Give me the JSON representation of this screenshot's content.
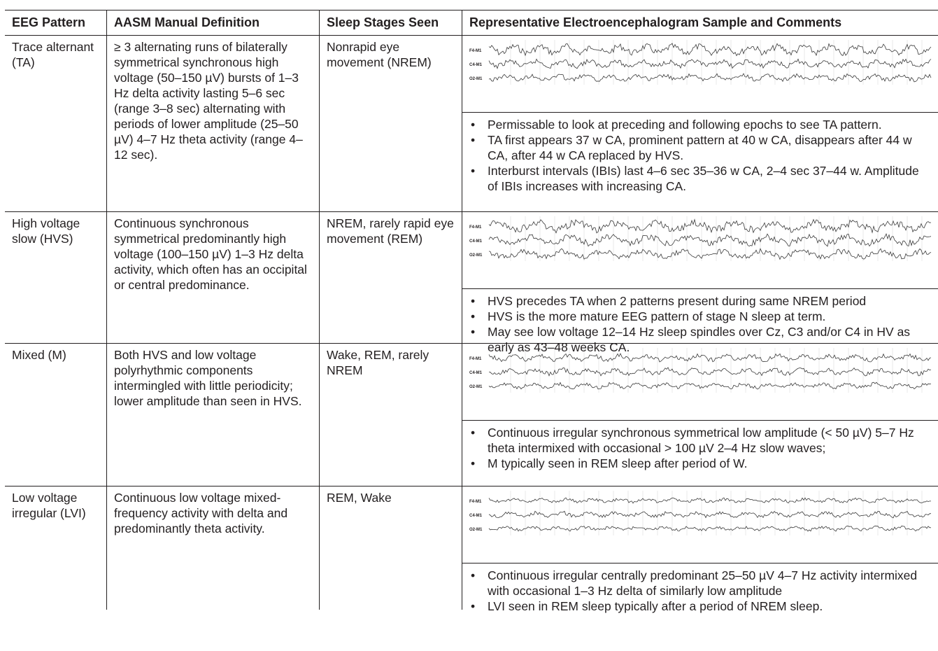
{
  "headers": {
    "pattern": "EEG Pattern",
    "definition": "AASM Manual Definition",
    "stages": "Sleep Stages Seen",
    "sample": "Representative Electroencephalogram Sample and Comments"
  },
  "channel_labels": [
    "F4-M1",
    "C4-M1",
    "O2-M1"
  ],
  "rows": [
    {
      "pattern": "Trace alternant (TA)",
      "definition": "≥ 3 alternating runs of bilaterally symmetrical synchronous high voltage (50–150 µV) bursts of 1–3 Hz delta activity lasting 5–6 sec (range 3–8 sec) alternating with periods of lower amplitude (25–50 µV) 4–7 Hz theta activity (range 4–12 sec).",
      "stages": "Nonrapid eye movement (NREM)",
      "comments": [
        "Permissable to look at preceding and following epochs to see TA pattern.",
        "TA first appears 37 w CA, prominent pattern at 40 w CA, disappears after 44 w CA, after 44 w CA replaced by HVS.",
        "Interburst intervals (IBIs) last 4–6 sec 35–36 w CA, 2–4 sec 37–44 w. Amplitude of IBIs increases with increasing CA."
      ]
    },
    {
      "pattern": "High voltage slow (HVS)",
      "definition": "Continuous synchronous symmetrical predominantly high voltage (100–150 µV) 1–3 Hz delta activity, which often has an occipital or central predominance.",
      "stages": "NREM, rarely rapid eye movement (REM)",
      "comments": [
        "HVS precedes TA when 2 patterns present during same NREM period",
        "HVS is the more mature EEG pattern of stage N sleep at term.",
        "May see low voltage 12–14 Hz sleep spindles over Cz, C3 and/or C4 in HV as early as 43–48 weeks CA."
      ]
    },
    {
      "pattern": "Mixed (M)",
      "definition": "Both HVS and low voltage polyrhythmic components intermingled with little periodicity; lower amplitude than seen in HVS.",
      "stages": "Wake, REM, rarely NREM",
      "comments": [
        "Continuous irregular synchronous symmetrical low amplitude (< 50 µV) 5–7 Hz theta intermixed with occasional > 100 µV 2–4 Hz slow waves;",
        "M typically seen in REM sleep after period of W."
      ]
    },
    {
      "pattern": "Low voltage irregular (LVI)",
      "definition": "Continuous low voltage mixed-frequency activity with delta and predominantly theta activity.",
      "stages": "REM, Wake",
      "comments": [
        "Continuous irregular centrally predominant 25–50 µV 4–7 Hz activity intermixed with occasional 1–3 Hz delta of similarly low amplitude",
        "LVI seen in REM sleep typically after a period of NREM sleep."
      ]
    }
  ]
}
